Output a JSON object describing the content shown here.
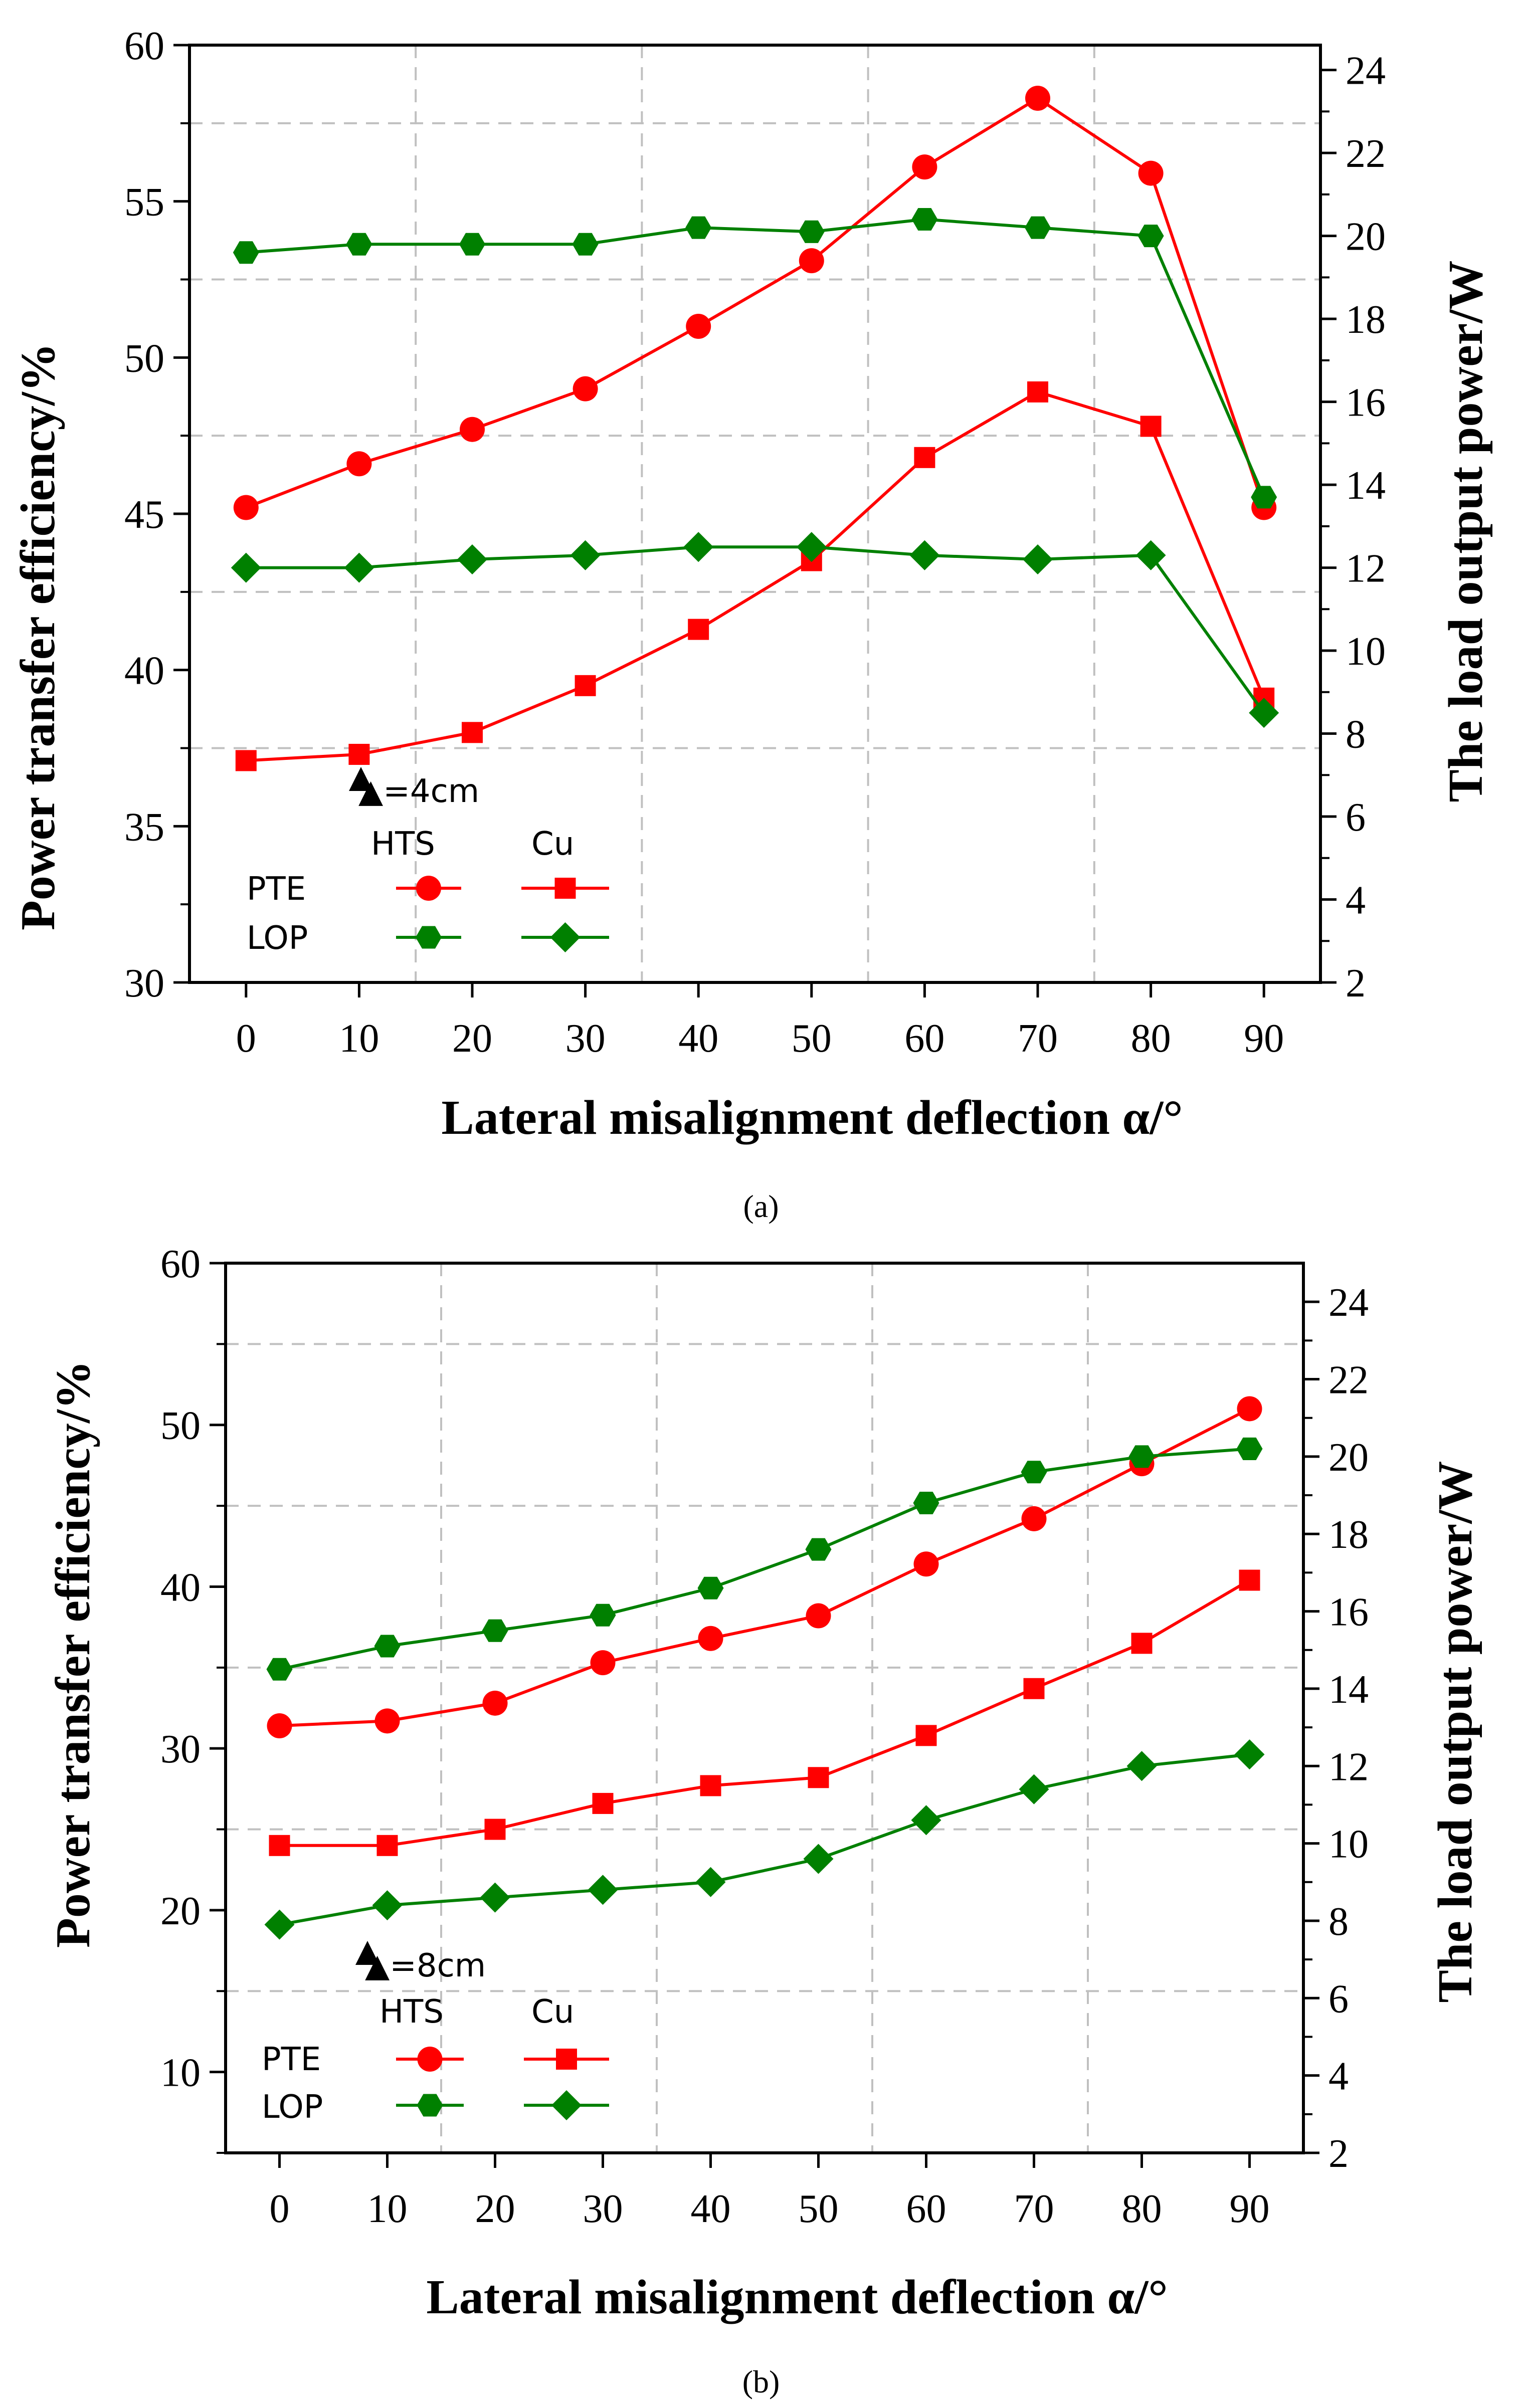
{
  "colors": {
    "hts": "#ff0000",
    "cu": "#ff0000",
    "lop": "#008000",
    "grid": "#c0c0c0",
    "axis": "#000000"
  },
  "chart_data": [
    {
      "type": "line",
      "caption": "(a)",
      "annotation": "▲=4cm",
      "x": [
        0,
        10,
        20,
        30,
        40,
        50,
        60,
        70,
        80,
        90
      ],
      "x_ticks": [
        "0",
        "10",
        "20",
        "30",
        "40",
        "50",
        "60",
        "70",
        "80",
        "90"
      ],
      "xlim": [
        -5,
        95
      ],
      "xlabel": "Lateral misalignment deflection  α/°",
      "ylabel": "Power transfer efficiency/%",
      "ylim": [
        30,
        60
      ],
      "y_ticks": [
        "30",
        "35",
        "40",
        "45",
        "50",
        "55",
        "60"
      ],
      "y2label": "The load output power/W",
      "y2lim": [
        2,
        24.6
      ],
      "y2_ticks": [
        "2",
        "4",
        "6",
        "8",
        "10",
        "12",
        "14",
        "16",
        "18",
        "20",
        "22",
        "24"
      ],
      "legend": {
        "col1": "HTS",
        "col2": "Cu",
        "row1": "PTE",
        "row2": "LOP",
        "placement": "bottom-left"
      },
      "series": [
        {
          "name": "PTE HTS",
          "axis": "left",
          "marker": "circle",
          "color": "#ff0000",
          "values": [
            45.2,
            46.6,
            47.7,
            49.0,
            51.0,
            53.1,
            56.1,
            58.3,
            55.9,
            45.2
          ]
        },
        {
          "name": "PTE Cu",
          "axis": "left",
          "marker": "square",
          "color": "#ff0000",
          "values": [
            37.1,
            37.3,
            38.0,
            39.5,
            41.3,
            43.5,
            46.8,
            48.9,
            47.8,
            39.1
          ]
        },
        {
          "name": "LOP HTS",
          "axis": "right",
          "marker": "hexagon",
          "color": "#008000",
          "values": [
            19.6,
            19.8,
            19.8,
            19.8,
            20.2,
            20.1,
            20.4,
            20.2,
            20.0,
            13.7
          ]
        },
        {
          "name": "LOP Cu",
          "axis": "right",
          "marker": "diamond",
          "color": "#008000",
          "values": [
            12.0,
            12.0,
            12.2,
            12.3,
            12.5,
            12.5,
            12.3,
            12.2,
            12.3,
            8.5
          ]
        }
      ]
    },
    {
      "type": "line",
      "caption": "(b)",
      "annotation": "▲=8cm",
      "x": [
        0,
        10,
        20,
        30,
        40,
        50,
        60,
        70,
        80,
        90
      ],
      "x_ticks": [
        "0",
        "10",
        "20",
        "30",
        "40",
        "50",
        "60",
        "70",
        "80",
        "90"
      ],
      "xlim": [
        -5,
        95
      ],
      "xlabel": "Lateral misalignment deflection  α/°",
      "ylabel": "Power transfer efficiency/%",
      "ylim": [
        5,
        60
      ],
      "y_ticks": [
        "10",
        "20",
        "30",
        "40",
        "50",
        "60"
      ],
      "y2label": "The load output power/W",
      "y2lim": [
        2,
        25
      ],
      "y2_ticks": [
        "2",
        "4",
        "6",
        "8",
        "10",
        "12",
        "14",
        "16",
        "18",
        "20",
        "22",
        "24"
      ],
      "legend": {
        "col1": "HTS",
        "col2": "Cu",
        "row1": "PTE",
        "row2": "LOP",
        "placement": "bottom-left"
      },
      "series": [
        {
          "name": "PTE HTS",
          "axis": "left",
          "marker": "circle",
          "color": "#ff0000",
          "values": [
            31.4,
            31.7,
            32.8,
            35.3,
            36.8,
            38.2,
            41.4,
            44.2,
            47.6,
            51.0
          ]
        },
        {
          "name": "PTE Cu",
          "axis": "left",
          "marker": "square",
          "color": "#ff0000",
          "values": [
            24.0,
            24.0,
            25.0,
            26.6,
            27.7,
            28.2,
            30.8,
            33.7,
            36.5,
            40.4
          ]
        },
        {
          "name": "LOP HTS",
          "axis": "right",
          "marker": "hexagon",
          "color": "#008000",
          "values": [
            14.5,
            15.1,
            15.5,
            15.9,
            16.6,
            17.6,
            18.8,
            19.6,
            20.0,
            20.2
          ]
        },
        {
          "name": "LOP Cu",
          "axis": "right",
          "marker": "diamond",
          "color": "#008000",
          "values": [
            7.9,
            8.4,
            8.6,
            8.8,
            9.0,
            9.6,
            10.6,
            11.4,
            12.0,
            12.3
          ]
        }
      ]
    }
  ]
}
